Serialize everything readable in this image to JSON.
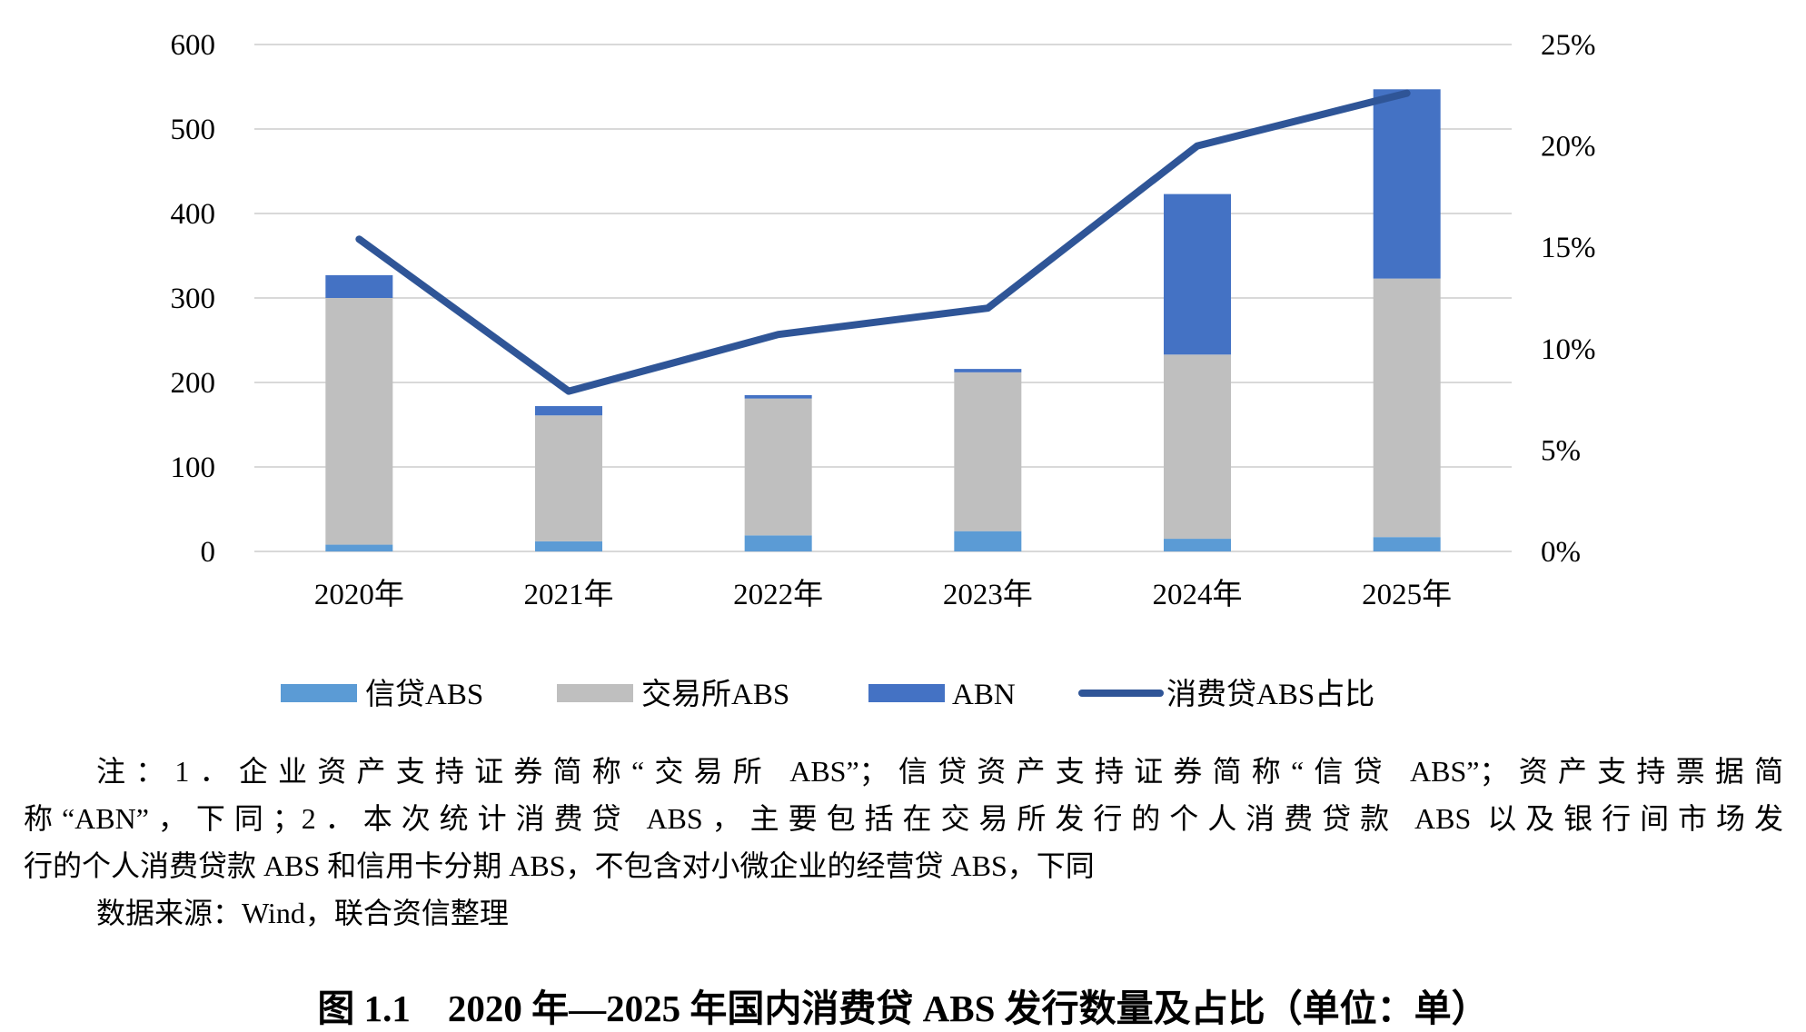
{
  "chart_data": {
    "type": "bar",
    "stacked": true,
    "categories": [
      "2020年",
      "2021年",
      "2022年",
      "2023年",
      "2024年",
      "2025年"
    ],
    "series": [
      {
        "name": "信贷ABS",
        "type": "bar",
        "axis": "left",
        "color": "#5B9BD5",
        "values": [
          8,
          12,
          19,
          24,
          15,
          17
        ]
      },
      {
        "name": "交易所ABS",
        "type": "bar",
        "axis": "left",
        "color": "#BFBFBF",
        "values": [
          292,
          149,
          162,
          188,
          218,
          306
        ]
      },
      {
        "name": "ABN",
        "type": "bar",
        "axis": "left",
        "color": "#4472C4",
        "values": [
          27,
          11,
          4,
          4,
          190,
          224
        ]
      },
      {
        "name": "消费贷ABS占比",
        "type": "line",
        "axis": "right",
        "color": "#2F5597",
        "values": [
          15.4,
          7.9,
          10.7,
          12.0,
          20.0,
          22.6
        ]
      }
    ],
    "y_left": {
      "min": 0,
      "max": 600,
      "ticks": [
        "0",
        "100",
        "200",
        "300",
        "400",
        "500",
        "600"
      ]
    },
    "y_right": {
      "min": 0,
      "max": 25,
      "unit": "%",
      "ticks": [
        "0%",
        "5%",
        "10%",
        "15%",
        "20%",
        "25%"
      ]
    },
    "grid": true,
    "legend": "bottom"
  },
  "note": {
    "lines": [
      "注：1．企业资产支持证券简称“交易所 ABS”；信贷资产支持证券简称“信贷 ABS”；资产支持票据简",
      "称“ABN”，下同；2．本次统计消费贷 ABS，主要包括在交易所发行的个人消费贷款 ABS 以及银行间市场发",
      "行的个人消费贷款 ABS 和信用卡分期 ABS，不包含对小微企业的经营贷 ABS，下同"
    ],
    "source": "数据来源：Wind，联合资信整理"
  },
  "caption": "图 1.1　2020 年—2025 年国内消费贷 ABS 发行数量及占比（单位：单）"
}
